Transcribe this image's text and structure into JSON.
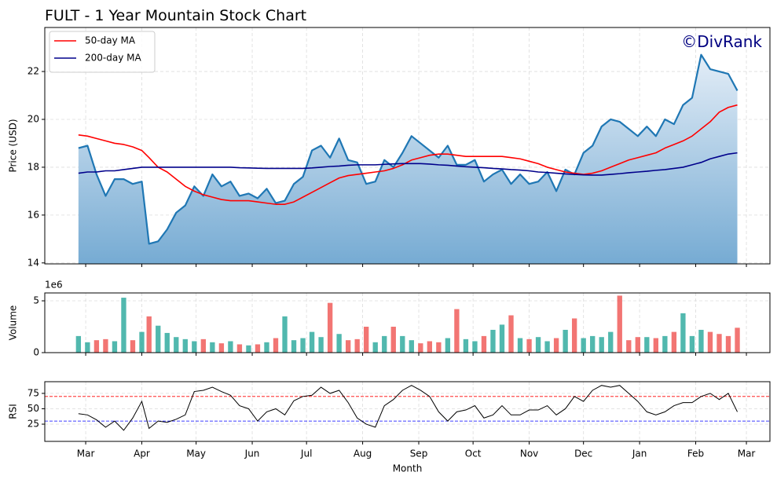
{
  "chart_data": {
    "type": "stock",
    "title": "FULT - 1 Year Mountain Stock Chart",
    "watermark": "©DivRank",
    "grid": true,
    "legend": "upper left",
    "xlabel": "Month",
    "x": [
      -4,
      1,
      6,
      11,
      16,
      21,
      26,
      31,
      35,
      40,
      45,
      50,
      55,
      60,
      65,
      70,
      75,
      80,
      85,
      90,
      95,
      100,
      105,
      110,
      115,
      120,
      125,
      130,
      135,
      140,
      145,
      150,
      155,
      160,
      165,
      170,
      175,
      180,
      185,
      190,
      195,
      200,
      205,
      210,
      215,
      220,
      225,
      230,
      235,
      240,
      245,
      250,
      255,
      260,
      265,
      270,
      275,
      280,
      285,
      290,
      295,
      300,
      305,
      310,
      315,
      320,
      325,
      330,
      335,
      340,
      345,
      350,
      355,
      360
    ],
    "xlim": [
      -22.6,
      378
    ],
    "xticks": [
      {
        "value": 0,
        "label": "Mar"
      },
      {
        "value": 31,
        "label": "Apr"
      },
      {
        "value": 61,
        "label": "May"
      },
      {
        "value": 92,
        "label": "Jun"
      },
      {
        "value": 122,
        "label": "Jul"
      },
      {
        "value": 153,
        "label": "Aug"
      },
      {
        "value": 184,
        "label": "Sep"
      },
      {
        "value": 214,
        "label": "Oct"
      },
      {
        "value": 245,
        "label": "Nov"
      },
      {
        "value": 275,
        "label": "Dec"
      },
      {
        "value": 306,
        "label": "Jan"
      },
      {
        "value": 337,
        "label": "Feb"
      },
      {
        "value": 365,
        "label": "Mar"
      }
    ],
    "price": {
      "ylabel": "Price (USD)",
      "ylim": [
        13.96,
        23.84
      ],
      "yticks": [
        14,
        16,
        18,
        20,
        22
      ],
      "series": [
        {
          "color": "#1f77b4",
          "fill": true,
          "values": [
            18.8,
            18.9,
            17.7,
            16.8,
            17.5,
            17.5,
            17.3,
            17.4,
            14.8,
            14.9,
            15.4,
            16.1,
            16.4,
            17.2,
            16.8,
            17.7,
            17.2,
            17.4,
            16.8,
            16.9,
            16.7,
            17.1,
            16.5,
            16.6,
            17.3,
            17.6,
            18.7,
            18.9,
            18.4,
            19.2,
            18.3,
            18.2,
            17.3,
            17.4,
            18.3,
            18.0,
            18.6,
            19.3,
            19.0,
            18.7,
            18.4,
            18.9,
            18.1,
            18.1,
            18.3,
            17.4,
            17.7,
            17.9,
            17.3,
            17.7,
            17.3,
            17.4,
            17.8,
            17.0,
            17.9,
            17.7,
            18.6,
            18.9,
            19.7,
            20.0,
            19.9,
            19.6,
            19.3,
            19.7,
            19.3,
            20.0,
            19.8,
            20.6,
            20.9,
            22.7,
            22.1,
            22.0,
            21.9,
            21.2
          ]
        },
        {
          "name": "50-day MA",
          "color": "#ff0000",
          "values": [
            19.35,
            19.3,
            19.2,
            19.1,
            19.0,
            18.95,
            18.85,
            18.7,
            18.4,
            18.0,
            17.8,
            17.5,
            17.2,
            17.0,
            16.85,
            16.75,
            16.65,
            16.6,
            16.6,
            16.6,
            16.55,
            16.5,
            16.45,
            16.45,
            16.55,
            16.75,
            16.95,
            17.15,
            17.35,
            17.55,
            17.65,
            17.7,
            17.75,
            17.8,
            17.85,
            17.95,
            18.1,
            18.3,
            18.4,
            18.5,
            18.55,
            18.55,
            18.5,
            18.45,
            18.45,
            18.45,
            18.45,
            18.45,
            18.4,
            18.35,
            18.25,
            18.15,
            18.0,
            17.9,
            17.8,
            17.75,
            17.7,
            17.75,
            17.85,
            18.0,
            18.15,
            18.3,
            18.4,
            18.5,
            18.6,
            18.8,
            18.95,
            19.1,
            19.3,
            19.6,
            19.9,
            20.3,
            20.5,
            20.6
          ]
        },
        {
          "name": "200-day MA",
          "color": "#00008b",
          "values": [
            17.75,
            17.8,
            17.8,
            17.85,
            17.85,
            17.9,
            17.95,
            18.0,
            18.0,
            18.0,
            18.0,
            18.0,
            18.0,
            18.0,
            18.0,
            18.0,
            18.0,
            18.0,
            17.98,
            17.97,
            17.96,
            17.95,
            17.95,
            17.95,
            17.95,
            17.95,
            17.97,
            18.0,
            18.03,
            18.05,
            18.08,
            18.1,
            18.1,
            18.1,
            18.12,
            18.14,
            18.15,
            18.15,
            18.15,
            18.13,
            18.1,
            18.08,
            18.05,
            18.02,
            18.0,
            17.98,
            17.95,
            17.93,
            17.9,
            17.88,
            17.85,
            17.8,
            17.78,
            17.75,
            17.72,
            17.7,
            17.68,
            17.67,
            17.67,
            17.7,
            17.73,
            17.77,
            17.8,
            17.83,
            17.87,
            17.9,
            17.95,
            18.0,
            18.1,
            18.2,
            18.35,
            18.45,
            18.55,
            18.6
          ]
        }
      ]
    },
    "volume": {
      "ylabel": "Volume",
      "offset_label": "1e6",
      "ylim": [
        0,
        5.76
      ],
      "yticks": [
        0,
        5
      ],
      "up_color": "#26a69a",
      "down_color": "#ef5350",
      "values": [
        1.6,
        1.0,
        1.2,
        1.3,
        1.1,
        5.3,
        1.2,
        2.0,
        3.5,
        2.6,
        1.9,
        1.5,
        1.3,
        1.1,
        1.3,
        1.0,
        0.9,
        1.1,
        0.8,
        0.7,
        0.8,
        1.0,
        1.4,
        3.5,
        1.2,
        1.4,
        2.0,
        1.5,
        4.8,
        1.8,
        1.2,
        1.3,
        2.5,
        1.0,
        1.6,
        2.5,
        1.6,
        1.2,
        0.9,
        1.1,
        1.0,
        1.4,
        4.2,
        1.3,
        1.1,
        1.6,
        2.2,
        2.7,
        3.6,
        1.4,
        1.3,
        1.5,
        1.1,
        1.4,
        2.2,
        3.3,
        1.4,
        1.6,
        1.5,
        2.0,
        5.5,
        1.2,
        1.5,
        1.5,
        1.4,
        1.6,
        2.0,
        3.8,
        1.6,
        2.2,
        2.0,
        1.8,
        1.6,
        2.4
      ]
    },
    "rsi": {
      "ylabel": "RSI",
      "ylim": [
        -3,
        94
      ],
      "yticks": [
        25,
        50,
        75
      ],
      "color": "#000000",
      "hlines": [
        {
          "value": 70,
          "color": "#ff0000"
        },
        {
          "value": 30,
          "color": "#0000ff"
        }
      ],
      "values": [
        42,
        40,
        32,
        20,
        30,
        15,
        35,
        62,
        18,
        30,
        28,
        33,
        40,
        78,
        80,
        85,
        78,
        72,
        55,
        50,
        30,
        45,
        50,
        40,
        63,
        70,
        72,
        85,
        75,
        80,
        60,
        35,
        25,
        20,
        55,
        65,
        80,
        88,
        80,
        70,
        45,
        30,
        45,
        48,
        55,
        35,
        40,
        55,
        40,
        40,
        48,
        48,
        55,
        40,
        50,
        70,
        62,
        80,
        88,
        85,
        88,
        75,
        62,
        45,
        40,
        45,
        55,
        60,
        60,
        70,
        75,
        65,
        75,
        45
      ]
    }
  }
}
